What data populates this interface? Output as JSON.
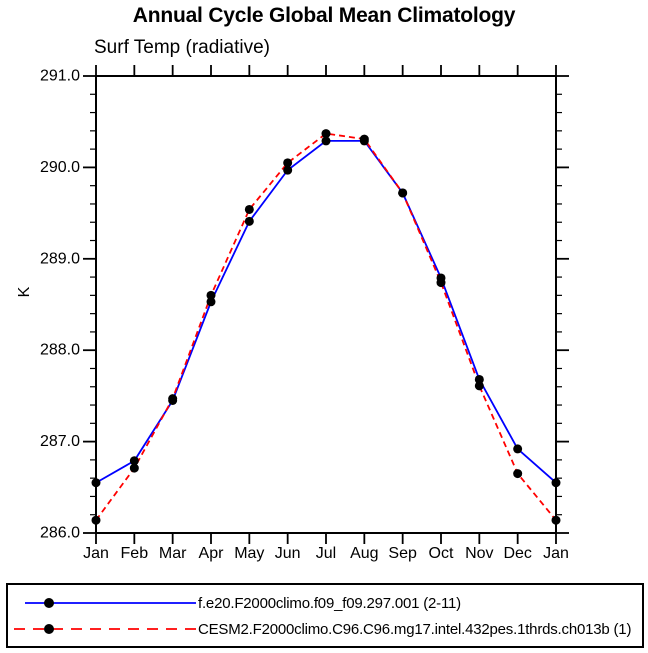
{
  "title": "Annual Cycle Global Mean Climatology",
  "subtitle": "Surf Temp (radiative)",
  "ylabel": "K",
  "axis_color": "#000000",
  "marker_color": "#000000",
  "chart_data": {
    "type": "line",
    "title": "Annual Cycle Global Mean Climatology",
    "subtitle": "Surf Temp (radiative)",
    "xlabel": "",
    "ylabel": "K",
    "x_categories": [
      "Jan",
      "Feb",
      "Mar",
      "Apr",
      "May",
      "Jun",
      "Jul",
      "Aug",
      "Sep",
      "Oct",
      "Nov",
      "Dec",
      "Jan"
    ],
    "y_tick_labels": [
      "286.0",
      "287.0",
      "288.0",
      "289.0",
      "290.0",
      "291.0"
    ],
    "ylim": [
      286.0,
      291.0
    ],
    "y_major_step": 1.0,
    "y_minor_step": 0.2,
    "grid": "off",
    "legend_position": "bottom-box",
    "marker": "filled-circle",
    "series": [
      {
        "name": "f.e20.F2000climo.f09_f09.297.001 (2-11)",
        "color": "#0000ff",
        "line_style": "solid",
        "values": [
          286.55,
          286.79,
          287.45,
          288.53,
          289.41,
          289.97,
          290.29,
          290.29,
          289.72,
          288.79,
          287.68,
          286.92,
          286.55
        ]
      },
      {
        "name": "CESM2.F2000climo.C96.C96.mg17.intel.432pes.1thrds.ch013b (1)",
        "color": "#ff0000",
        "line_style": "dashed",
        "values": [
          286.14,
          286.71,
          287.47,
          288.6,
          289.54,
          290.05,
          290.37,
          290.31,
          289.72,
          288.74,
          287.61,
          286.65,
          286.14
        ]
      }
    ]
  }
}
